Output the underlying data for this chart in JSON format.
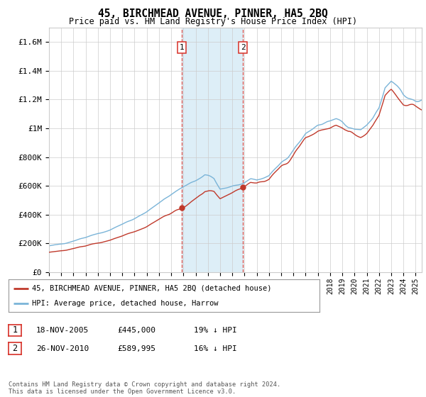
{
  "title": "45, BIRCHMEAD AVENUE, PINNER, HA5 2BQ",
  "subtitle": "Price paid vs. HM Land Registry's House Price Index (HPI)",
  "ylim": [
    0,
    1700000
  ],
  "yticks": [
    0,
    200000,
    400000,
    600000,
    800000,
    1000000,
    1200000,
    1400000,
    1600000
  ],
  "ytick_labels": [
    "£0",
    "£200K",
    "£400K",
    "£600K",
    "£800K",
    "£1M",
    "£1.2M",
    "£1.4M",
    "£1.6M"
  ],
  "hpi_color": "#7ab4d8",
  "price_color": "#c0392b",
  "sale1_year": 2005.88,
  "sale1_price": 445000,
  "sale2_year": 2010.88,
  "sale2_price": 589995,
  "shade_color": "#ddeef7",
  "vline_color": "#d73027",
  "legend_label_red": "45, BIRCHMEAD AVENUE, PINNER, HA5 2BQ (detached house)",
  "legend_label_blue": "HPI: Average price, detached house, Harrow",
  "table_row1": [
    "1",
    "18-NOV-2005",
    "£445,000",
    "19% ↓ HPI"
  ],
  "table_row2": [
    "2",
    "26-NOV-2010",
    "£589,995",
    "16% ↓ HPI"
  ],
  "footnote": "Contains HM Land Registry data © Crown copyright and database right 2024.\nThis data is licensed under the Open Government Licence v3.0.",
  "background_color": "#ffffff",
  "grid_color": "#cccccc",
  "xlim_start": 1995.0,
  "xlim_end": 2025.5
}
